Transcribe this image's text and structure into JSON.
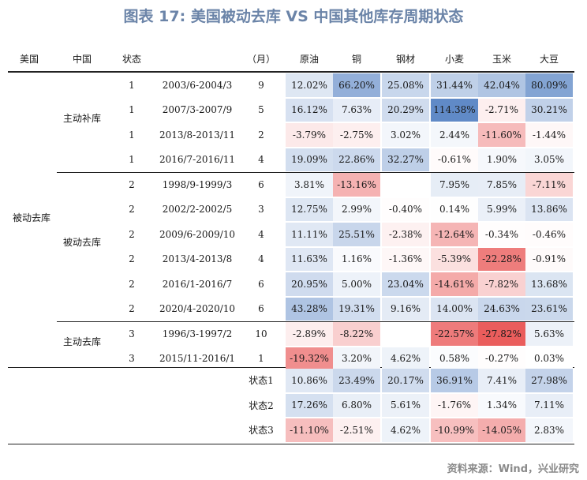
{
  "title": "图表 17: 美国被动去库 VS 中国其他库存周期状态",
  "source": "资料来源：Wind，兴业研究",
  "headers": {
    "us": "美国",
    "cn": "中国",
    "state": "状态",
    "period": "",
    "months": "（月）",
    "commodities": [
      "原油",
      "铜",
      "钢材",
      "小麦",
      "玉米",
      "大豆"
    ]
  },
  "group_labels": {
    "us_passive": "被动去库",
    "cn_active_replenish": "主动补库",
    "cn_passive": "被动去库",
    "cn_active_destock": "主动去库"
  },
  "chart_data": {
    "type": "table",
    "columns": [
      "原油",
      "铜",
      "钢材",
      "小麦",
      "玉米",
      "大豆"
    ],
    "rows": [
      {
        "state": "1",
        "period": "2003/6-2004/3",
        "months": "9",
        "values": [
          12.02,
          66.2,
          25.08,
          31.44,
          42.04,
          80.09
        ],
        "labels": [
          "12.02%",
          "66.20%",
          "25.08%",
          "31.44%",
          "42.04%",
          "80.09%"
        ]
      },
      {
        "state": "1",
        "period": "2007/3-2007/9",
        "months": "5",
        "values": [
          16.12,
          7.63,
          20.29,
          114.38,
          -2.71,
          30.21
        ],
        "labels": [
          "16.12%",
          "7.63%",
          "20.29%",
          "114.38%",
          "-2.71%",
          "30.21%"
        ]
      },
      {
        "state": "1",
        "period": "2013/8-2013/11",
        "months": "2",
        "values": [
          -3.79,
          -2.75,
          3.02,
          2.44,
          -11.6,
          -1.44
        ],
        "labels": [
          "-3.79%",
          "-2.75%",
          "3.02%",
          "2.44%",
          "-11.60%",
          "-1.44%"
        ]
      },
      {
        "state": "1",
        "period": "2016/7-2016/11",
        "months": "4",
        "values": [
          19.09,
          22.86,
          32.27,
          -0.61,
          1.9,
          3.05
        ],
        "labels": [
          "19.09%",
          "22.86%",
          "32.27%",
          "-0.61%",
          "1.90%",
          "3.05%"
        ]
      },
      {
        "state": "2",
        "period": "1998/9-1999/3",
        "months": "6",
        "values": [
          3.81,
          -13.16,
          null,
          7.95,
          7.85,
          -7.11
        ],
        "labels": [
          "3.81%",
          "-13.16%",
          "",
          "7.95%",
          "7.85%",
          "-7.11%"
        ]
      },
      {
        "state": "2",
        "period": "2002/2-2002/5",
        "months": "3",
        "values": [
          12.75,
          2.99,
          -0.4,
          0.14,
          5.99,
          13.86
        ],
        "labels": [
          "12.75%",
          "2.99%",
          "-0.40%",
          "0.14%",
          "5.99%",
          "13.86%"
        ]
      },
      {
        "state": "2",
        "period": "2009/6-2009/10",
        "months": "4",
        "values": [
          11.11,
          25.51,
          -2.38,
          -12.64,
          -0.34,
          -0.46
        ],
        "labels": [
          "11.11%",
          "25.51%",
          "-2.38%",
          "-12.64%",
          "-0.34%",
          "-0.46%"
        ]
      },
      {
        "state": "2",
        "period": "2013/4-2013/8",
        "months": "4",
        "values": [
          11.63,
          1.16,
          -1.36,
          -5.39,
          -22.28,
          -0.91
        ],
        "labels": [
          "11.63%",
          "1.16%",
          "-1.36%",
          "-5.39%",
          "-22.28%",
          "-0.91%"
        ]
      },
      {
        "state": "2",
        "period": "2016/1-2016/7",
        "months": "6",
        "values": [
          20.95,
          5.0,
          23.04,
          -14.61,
          -7.82,
          13.68
        ],
        "labels": [
          "20.95%",
          "5.00%",
          "23.04%",
          "-14.61%",
          "-7.82%",
          "13.68%"
        ]
      },
      {
        "state": "2",
        "period": "2020/4-2020/10",
        "months": "6",
        "values": [
          43.28,
          19.31,
          9.16,
          14.0,
          24.63,
          23.61
        ],
        "labels": [
          "43.28%",
          "19.31%",
          "9.16%",
          "14.00%",
          "24.63%",
          "23.61%"
        ]
      },
      {
        "state": "3",
        "period": "1996/3-1997/2",
        "months": "10",
        "values": [
          -2.89,
          -8.22,
          null,
          -22.57,
          -27.82,
          5.63
        ],
        "labels": [
          "-2.89%",
          "-8.22%",
          "",
          "-22.57%",
          "-27.82%",
          "5.63%"
        ]
      },
      {
        "state": "3",
        "period": "2015/11-2016/1",
        "months": "1",
        "values": [
          -19.32,
          3.2,
          4.62,
          0.58,
          -0.27,
          0.03
        ],
        "labels": [
          "-19.32%",
          "3.20%",
          "4.62%",
          "0.58%",
          "-0.27%",
          "0.03%"
        ]
      }
    ],
    "summary": [
      {
        "label": "状态1",
        "values": [
          10.86,
          23.49,
          20.17,
          36.91,
          7.41,
          27.98
        ],
        "labels": [
          "10.86%",
          "23.49%",
          "20.17%",
          "36.91%",
          "7.41%",
          "27.98%"
        ]
      },
      {
        "label": "状态2",
        "values": [
          17.26,
          6.8,
          5.61,
          -1.76,
          1.34,
          7.11
        ],
        "labels": [
          "17.26%",
          "6.80%",
          "5.61%",
          "-1.76%",
          "1.34%",
          "7.11%"
        ]
      },
      {
        "label": "状态3",
        "values": [
          -11.1,
          -2.51,
          4.62,
          -10.99,
          -14.05,
          2.83
        ],
        "labels": [
          "-11.10%",
          "-2.51%",
          "4.62%",
          "-10.99%",
          "-14.05%",
          "2.83%"
        ]
      }
    ],
    "color_scale": {
      "positive": "#5b86c5",
      "negative": "#e8504f",
      "neutral": "#ffffff"
    }
  }
}
